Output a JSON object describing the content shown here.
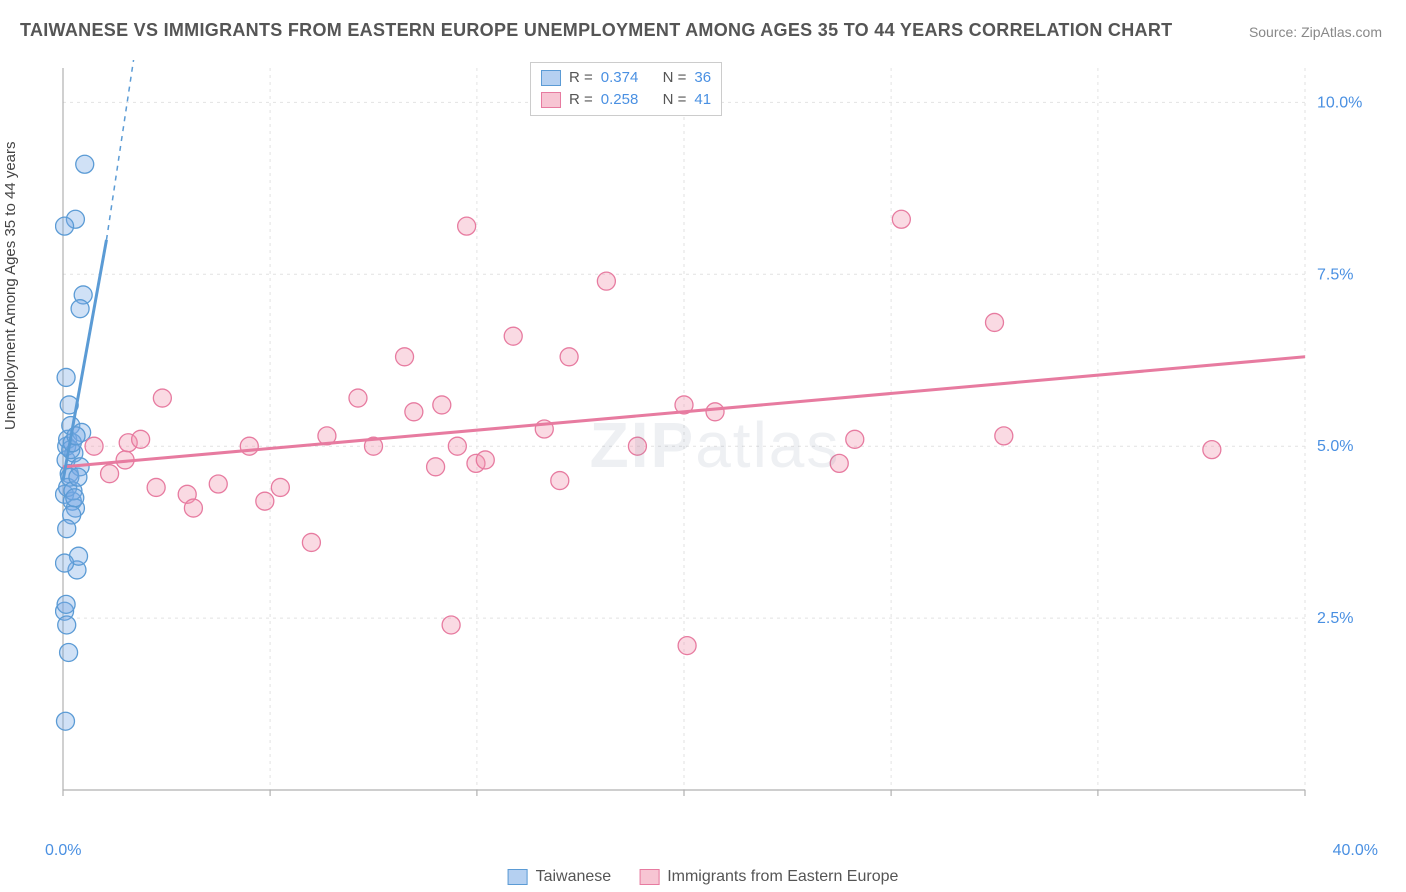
{
  "title": "TAIWANESE VS IMMIGRANTS FROM EASTERN EUROPE UNEMPLOYMENT AMONG AGES 35 TO 44 YEARS CORRELATION CHART",
  "source_label": "Source: ZipAtlas.com",
  "ylabel": "Unemployment Among Ages 35 to 44 years",
  "watermark_a": "ZIP",
  "watermark_b": "atlas",
  "chart": {
    "type": "scatter-correlation",
    "background_color": "#ffffff",
    "grid_color": "#e2e2e2",
    "grid_dash": "3,4",
    "axis_color": "#b0b0b0",
    "xlim": [
      0,
      40
    ],
    "ylim": [
      0,
      10.5
    ],
    "yticks": [
      2.5,
      5.0,
      7.5,
      10.0
    ],
    "ytick_labels": [
      "2.5%",
      "5.0%",
      "7.5%",
      "10.0%"
    ],
    "xtick_positions": [
      0,
      6.67,
      13.33,
      20.0,
      26.67,
      33.33,
      40.0
    ],
    "x_label_min": "0.0%",
    "x_label_max": "40.0%",
    "marker_radius": 9,
    "marker_stroke_width": 1.3,
    "trend_line_width": 3,
    "trend_dash_width": 1.5,
    "y_tick_label_color": "#4a90e2",
    "x_tick_label_color": "#4a90e2"
  },
  "series": [
    {
      "key": "taiwanese",
      "label": "Taiwanese",
      "fill": "rgba(120,170,230,0.35)",
      "stroke": "#5b9bd5",
      "swatch_fill": "rgba(120,170,230,0.55)",
      "R": "0.374",
      "N": "36",
      "trend": {
        "x1": 0,
        "y1": 4.5,
        "x2": 1.4,
        "y2": 8.0,
        "dash_x2": 2.4,
        "dash_y2": 11.0
      },
      "points": [
        [
          0.05,
          4.3
        ],
        [
          0.1,
          4.8
        ],
        [
          0.12,
          5.0
        ],
        [
          0.15,
          5.1
        ],
        [
          0.2,
          4.6
        ],
        [
          0.25,
          5.3
        ],
        [
          0.3,
          4.2
        ],
        [
          0.35,
          4.9
        ],
        [
          0.4,
          4.1
        ],
        [
          0.45,
          3.2
        ],
        [
          0.5,
          3.4
        ],
        [
          0.55,
          4.7
        ],
        [
          0.6,
          5.2
        ],
        [
          0.05,
          2.6
        ],
        [
          0.1,
          2.7
        ],
        [
          0.12,
          2.4
        ],
        [
          0.18,
          2.0
        ],
        [
          0.08,
          1.0
        ],
        [
          0.15,
          4.4
        ],
        [
          0.22,
          4.55
        ],
        [
          0.28,
          4.0
        ],
        [
          0.32,
          4.35
        ],
        [
          0.4,
          8.3
        ],
        [
          0.05,
          8.2
        ],
        [
          0.7,
          9.1
        ],
        [
          0.65,
          7.2
        ],
        [
          0.55,
          7.0
        ],
        [
          0.1,
          6.0
        ],
        [
          0.2,
          5.6
        ],
        [
          0.25,
          4.95
        ],
        [
          0.3,
          5.05
        ],
        [
          0.12,
          3.8
        ],
        [
          0.05,
          3.3
        ],
        [
          0.42,
          5.15
        ],
        [
          0.38,
          4.25
        ],
        [
          0.48,
          4.55
        ]
      ]
    },
    {
      "key": "eastern-europe",
      "label": "Immigrants from Eastern Europe",
      "fill": "rgba(240,150,175,0.35)",
      "stroke": "#e77ba0",
      "swatch_fill": "rgba(240,150,175,0.55)",
      "R": "0.258",
      "N": "41",
      "trend": {
        "x1": 0,
        "y1": 4.7,
        "x2": 40,
        "y2": 6.3
      },
      "points": [
        [
          1.0,
          5.0
        ],
        [
          1.5,
          4.6
        ],
        [
          2.0,
          4.8
        ],
        [
          2.1,
          5.05
        ],
        [
          2.5,
          5.1
        ],
        [
          3.0,
          4.4
        ],
        [
          3.2,
          5.7
        ],
        [
          4.0,
          4.3
        ],
        [
          4.2,
          4.1
        ],
        [
          5.0,
          4.45
        ],
        [
          6.5,
          4.2
        ],
        [
          7.0,
          4.4
        ],
        [
          8.0,
          3.6
        ],
        [
          8.5,
          5.15
        ],
        [
          9.5,
          5.7
        ],
        [
          10.0,
          5.0
        ],
        [
          11.0,
          6.3
        ],
        [
          11.3,
          5.5
        ],
        [
          12.0,
          4.7
        ],
        [
          12.2,
          5.6
        ],
        [
          12.7,
          5.0
        ],
        [
          12.5,
          2.4
        ],
        [
          13.0,
          8.2
        ],
        [
          13.3,
          4.75
        ],
        [
          13.6,
          4.8
        ],
        [
          14.5,
          6.6
        ],
        [
          15.5,
          5.25
        ],
        [
          16.3,
          6.3
        ],
        [
          16.0,
          4.5
        ],
        [
          17.5,
          7.4
        ],
        [
          18.5,
          5.0
        ],
        [
          20.0,
          5.6
        ],
        [
          20.1,
          2.1
        ],
        [
          21.0,
          5.5
        ],
        [
          25.0,
          4.75
        ],
        [
          25.5,
          5.1
        ],
        [
          27.0,
          8.3
        ],
        [
          30.0,
          6.8
        ],
        [
          30.3,
          5.15
        ],
        [
          37.0,
          4.95
        ],
        [
          6.0,
          5.0
        ]
      ]
    }
  ],
  "legend_stats": {
    "r_prefix": "R = ",
    "n_prefix": "N = "
  }
}
